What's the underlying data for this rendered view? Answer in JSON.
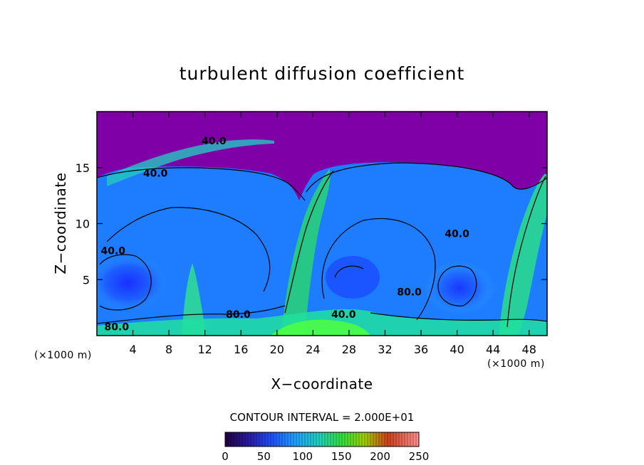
{
  "chart_data": {
    "type": "heatmap",
    "title": "turbulent diffusion coefficient",
    "xlabel": "X−coordinate",
    "ylabel": "Z−coordinate",
    "x_unit": "(×1000 m)",
    "y_unit": "(×1000 m)",
    "xlim": [
      0,
      50
    ],
    "ylim": [
      0,
      20
    ],
    "x_ticks": [
      4,
      8,
      12,
      16,
      20,
      24,
      28,
      32,
      36,
      40,
      44,
      48
    ],
    "y_ticks": [
      5,
      10,
      15
    ],
    "contour_interval_text": "CONTOUR INTERVAL = 2.000E+01",
    "contour_labels": [
      {
        "text": "40.0",
        "x": 13.0,
        "z": 17.4
      },
      {
        "text": "40.0",
        "x": 6.5,
        "z": 14.5
      },
      {
        "text": "40.0",
        "x": 1.8,
        "z": 7.6
      },
      {
        "text": "40.0",
        "x": 40.0,
        "z": 9.1
      },
      {
        "text": "80.0",
        "x": 2.2,
        "z": 0.8
      },
      {
        "text": "80.0",
        "x": 15.7,
        "z": 1.9
      },
      {
        "text": "80.0",
        "x": 34.7,
        "z": 3.9
      },
      {
        "text": "40.0",
        "x": 27.4,
        "z": 1.9
      }
    ],
    "colorbar": {
      "min": 0,
      "max": 250,
      "ticks": [
        "0",
        "50",
        "100",
        "150",
        "200",
        "250"
      ]
    },
    "colors": {
      "top_region": "#8000a8",
      "low": "#1a3cff",
      "mid": "#1e90ff",
      "high": "#20e0a0",
      "peak": "#40ff40"
    }
  }
}
